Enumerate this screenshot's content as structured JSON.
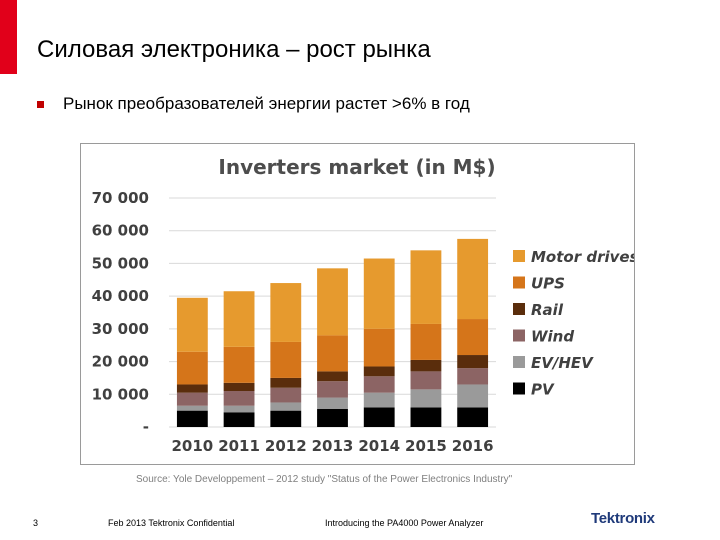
{
  "slide": {
    "title": "Силовая электроника – рост рынка",
    "bullet": "Рынок преобразователей энергии растет  >6% в год",
    "source": "Source:  Yole Developpement – 2012 study \"Status of the Power Electronics Industry\"",
    "page_number": "3",
    "footer_left": "Feb 2013   Tektronix Confidential",
    "footer_center": "Introducing the PA4000 Power Analyzer",
    "logo_text": "Tektronix",
    "accent_color": "#e1001a"
  },
  "chart_data": {
    "type": "bar",
    "stacked": true,
    "title": "Inverters market (in M$)",
    "xlabel": "",
    "ylabel": "",
    "ylim": [
      0,
      70000
    ],
    "yticks": [
      0,
      10000,
      20000,
      30000,
      40000,
      50000,
      60000,
      70000
    ],
    "ytick_labels": [
      "-",
      "10 000",
      "20 000",
      "30 000",
      "40 000",
      "50 000",
      "60 000",
      "70 000"
    ],
    "grid": true,
    "legend_position": "right",
    "categories": [
      "2010",
      "2011",
      "2012",
      "2013",
      "2014",
      "2015",
      "2016"
    ],
    "series": [
      {
        "name": "PV",
        "color": "#000000",
        "values": [
          5000,
          4500,
          5000,
          5500,
          6000,
          6000,
          6000
        ]
      },
      {
        "name": "EV/HEV",
        "color": "#9a9a9a",
        "values": [
          1500,
          2000,
          2500,
          3500,
          4500,
          5500,
          7000
        ]
      },
      {
        "name": "Wind",
        "color": "#8c6464",
        "values": [
          4000,
          4500,
          4500,
          5000,
          5000,
          5500,
          5000
        ]
      },
      {
        "name": "Rail",
        "color": "#5a2d0c",
        "values": [
          2500,
          2500,
          3000,
          3000,
          3000,
          3500,
          4000
        ]
      },
      {
        "name": "UPS",
        "color": "#d5751a",
        "values": [
          10000,
          11000,
          11000,
          11000,
          11500,
          11000,
          11000
        ]
      },
      {
        "name": "Motor drives",
        "color": "#e69a2e",
        "values": [
          16500,
          17000,
          18000,
          20500,
          21500,
          22500,
          24500
        ]
      }
    ]
  }
}
